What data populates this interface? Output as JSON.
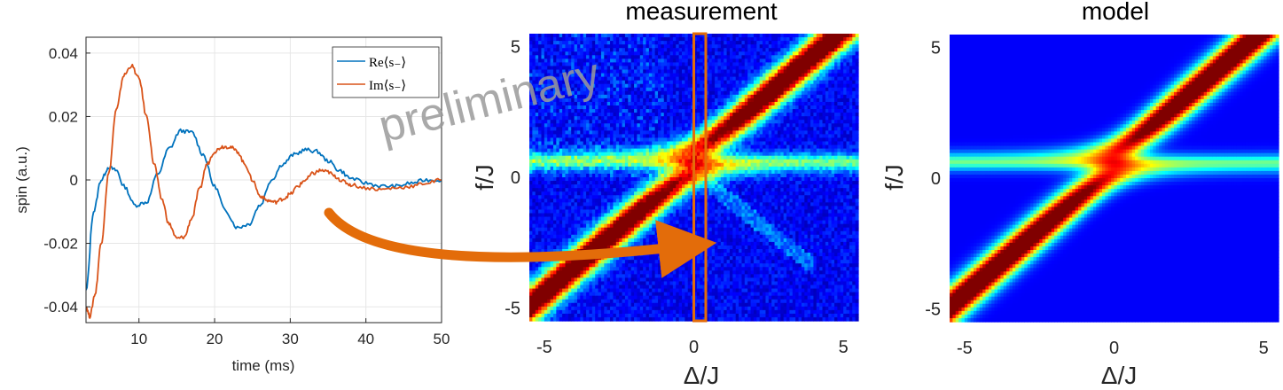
{
  "colors": {
    "series_re": "#0072BD",
    "series_im": "#D95319",
    "arrow": "#E36C0A",
    "grid": "#E6E6E6",
    "colormap": "jet"
  },
  "chart_data": [
    {
      "type": "line",
      "xlabel": "time (ms)",
      "ylabel": "spin (a.u.)",
      "xlim": [
        3,
        50
      ],
      "ylim": [
        -0.045,
        0.045
      ],
      "xticks": [
        10,
        20,
        30,
        40,
        50
      ],
      "xtick_labels": [
        "10",
        "20",
        "30",
        "40",
        "50"
      ],
      "yticks": [
        0.04,
        0.02,
        0,
        -0.02,
        -0.04
      ],
      "ytick_labels": [
        "0.04",
        "0.02",
        "0",
        "-0.02",
        "-0.04"
      ],
      "grid": true,
      "legend_position": "top-right",
      "series": [
        {
          "name": "Re⟨s₋⟩",
          "x": [
            3,
            4,
            5,
            6,
            7,
            8,
            9.5,
            11,
            12.5,
            14,
            15.5,
            17,
            18.5,
            20,
            21.5,
            23,
            24.5,
            26,
            27.5,
            29,
            30.5,
            32,
            33.5,
            35,
            36.5,
            38,
            40,
            42,
            44,
            46,
            48,
            50
          ],
          "y": [
            -0.035,
            -0.01,
            0.0,
            0.004,
            0.003,
            -0.002,
            -0.008,
            -0.007,
            0.002,
            0.01,
            0.0155,
            0.015,
            0.008,
            -0.002,
            -0.01,
            -0.015,
            -0.014,
            -0.008,
            0.0,
            0.005,
            0.008,
            0.0095,
            0.009,
            0.006,
            0.003,
            0.0005,
            -0.001,
            -0.002,
            -0.002,
            -0.001,
            0.0,
            0.0
          ]
        },
        {
          "name": "Im⟨s₋⟩",
          "x": [
            3,
            3.5,
            4.2,
            5,
            6,
            7,
            8,
            9,
            10,
            11,
            12,
            13,
            14,
            15,
            16,
            17,
            18,
            19,
            20,
            21,
            22,
            23,
            24,
            25,
            26,
            27,
            28,
            29,
            30,
            31,
            32,
            33,
            34,
            35,
            36,
            37,
            38,
            40,
            42,
            44,
            46,
            48,
            50
          ],
          "y": [
            -0.04,
            -0.043,
            -0.036,
            -0.02,
            0.002,
            0.022,
            0.033,
            0.036,
            0.032,
            0.02,
            0.005,
            -0.006,
            -0.014,
            -0.0185,
            -0.018,
            -0.012,
            -0.003,
            0.005,
            0.009,
            0.0105,
            0.0105,
            0.009,
            0.005,
            0.0,
            -0.005,
            -0.0065,
            -0.007,
            -0.006,
            -0.0045,
            -0.002,
            0.0,
            0.002,
            0.003,
            0.0025,
            0.001,
            -0.0005,
            -0.0015,
            -0.0025,
            -0.003,
            -0.0025,
            -0.002,
            -0.001,
            0.0
          ]
        }
      ]
    },
    {
      "type": "heatmap",
      "title": "measurement",
      "xlabel": "Δ/J",
      "ylabel": "f/J",
      "xlim": [
        -5.5,
        5.5
      ],
      "ylim": [
        -5.5,
        5.5
      ],
      "xticks": [
        -5,
        0,
        5
      ],
      "xtick_labels": [
        "-5",
        "0",
        "5"
      ],
      "yticks": [
        5,
        0,
        -5
      ],
      "ytick_labels": [
        "5",
        "0",
        "-5"
      ],
      "colormap": "jet",
      "avoided_crossing": {
        "coupling_gap": 1.0,
        "center_f": 0.6
      },
      "highlight_column_x": [
        0.0,
        0.4
      ],
      "watermark": "preliminary"
    },
    {
      "type": "heatmap",
      "title": "model",
      "xlabel": "Δ/J",
      "ylabel": "f/J",
      "xlim": [
        -5.5,
        5.5
      ],
      "ylim": [
        -5.5,
        5.5
      ],
      "xticks": [
        -5,
        0,
        5
      ],
      "xtick_labels": [
        "-5",
        "0",
        "5"
      ],
      "yticks": [
        5,
        0,
        -5
      ],
      "ytick_labels": [
        "5",
        "0",
        "-5"
      ],
      "colormap": "jet",
      "avoided_crossing": {
        "coupling_gap": 1.0,
        "center_f": 0.6
      }
    }
  ]
}
